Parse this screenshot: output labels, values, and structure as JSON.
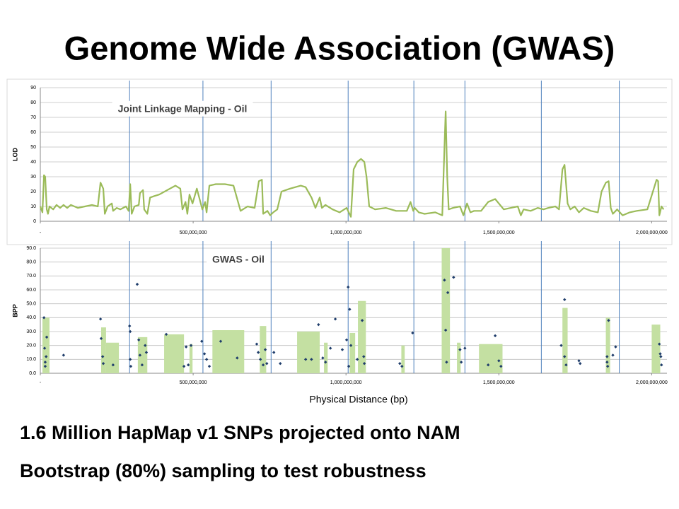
{
  "title": "Genome Wide Association (GWAS)",
  "chart_data": [
    {
      "type": "line",
      "annotation": "Joint Linkage Mapping - Oil",
      "ylabel": "LOD",
      "color": "#9bbb59",
      "grid": true,
      "xlim": [
        0,
        2050000000
      ],
      "ylim": [
        0,
        90
      ],
      "xticks": [
        {
          "value": 0,
          "label": "-"
        },
        {
          "value": 500000000,
          "label": "500,000,000"
        },
        {
          "value": 1000000000,
          "label": "1,000,000,000"
        },
        {
          "value": 1500000000,
          "label": "1,500,000,000"
        },
        {
          "value": 2000000000,
          "label": "2,000,000,000"
        }
      ],
      "yticks": [
        0,
        10,
        20,
        30,
        40,
        50,
        60,
        70,
        80,
        90
      ],
      "vlines": [
        292000000.0,
        532000000.0,
        755000000.0,
        1007000000.0,
        1222000000.0,
        1389000000.0,
        1639000000.0,
        1894000000.0
      ],
      "x": [
        0,
        7000000.0,
        12000000.0,
        16000000.0,
        21000000.0,
        25000000.0,
        30000000.0,
        42000000.0,
        53000000.0,
        65000000.0,
        76000000.0,
        88000000.0,
        100000000.0,
        123000000.0,
        146000000.0,
        169000000.0,
        188000000.0,
        197000000.0,
        206000000.0,
        211000000.0,
        220000000.0,
        234000000.0,
        238000000.0,
        250000000.0,
        262000000.0,
        280000000.0,
        289000000.0,
        294000000.0,
        299000000.0,
        308000000.0,
        322000000.0,
        326000000.0,
        336000000.0,
        340000000.0,
        350000000.0,
        359000000.0,
        373000000.0,
        389000000.0,
        424000000.0,
        442000000.0,
        458000000.0,
        465000000.0,
        475000000.0,
        481000000.0,
        488000000.0,
        498000000.0,
        512000000.0,
        521000000.0,
        530000000.0,
        539000000.0,
        544000000.0,
        553000000.0,
        574000000.0,
        604000000.0,
        632000000.0,
        655000000.0,
        678000000.0,
        701000000.0,
        715000000.0,
        725000000.0,
        729000000.0,
        743000000.0,
        752000000.0,
        762000000.0,
        775000000.0,
        789000000.0,
        817000000.0,
        852000000.0,
        868000000.0,
        887000000.0,
        900000000.0,
        914000000.0,
        921000000.0,
        933000000.0,
        956000000.0,
        979000000.0,
        1002000000.0,
        1016000000.0,
        1025000000.0,
        1037000000.0,
        1049000000.0,
        1060000000.0,
        1067000000.0,
        1076000000.0,
        1095000000.0,
        1130000000.0,
        1164000000.0,
        1199000000.0,
        1211000000.0,
        1220000000.0,
        1225000000.0,
        1238000000.0,
        1257000000.0,
        1292000000.0,
        1315000000.0,
        1322000000.0,
        1326000000.0,
        1331000000.0,
        1336000000.0,
        1350000000.0,
        1373000000.0,
        1384000000.0,
        1396000000.0,
        1407000000.0,
        1419000000.0,
        1442000000.0,
        1465000000.0,
        1488000000.0,
        1500000000.0,
        1516000000.0,
        1539000000.0,
        1562000000.0,
        1572000000.0,
        1581000000.0,
        1604000000.0,
        1627000000.0,
        1646000000.0,
        1662000000.0,
        1685000000.0,
        1697000000.0,
        1708000000.0,
        1715000000.0,
        1725000000.0,
        1734000000.0,
        1748000000.0,
        1762000000.0,
        1778000000.0,
        1801000000.0,
        1824000000.0,
        1836000000.0,
        1850000000.0,
        1859000000.0,
        1866000000.0,
        1873000000.0,
        1887000000.0,
        1905000000.0,
        1928000000.0,
        1951000000.0,
        1986000000.0,
        2016000000.0,
        2021000000.0,
        2025000000.0,
        2032000000.0,
        2039000000.0
      ],
      "values": [
        10,
        6,
        31,
        30,
        8,
        5,
        10,
        8,
        11,
        9,
        11,
        9,
        11,
        9,
        10,
        11,
        10,
        26,
        22,
        5,
        10,
        12,
        7,
        9,
        8,
        10,
        7,
        25,
        5,
        10,
        11,
        19,
        21,
        8,
        5,
        16,
        17,
        18,
        22,
        24,
        22,
        8,
        13,
        5,
        18,
        12,
        22,
        15,
        8,
        13,
        6,
        24,
        25,
        25,
        24,
        7,
        10,
        9,
        27,
        28,
        5,
        7,
        4,
        6,
        8,
        20,
        22,
        24,
        23,
        16,
        9,
        16,
        9,
        11,
        8,
        6,
        9,
        3,
        35,
        40,
        42,
        40,
        30,
        10,
        8,
        9,
        7,
        7,
        13,
        7,
        9,
        6,
        5,
        6,
        4,
        50,
        74,
        30,
        8,
        9,
        10,
        4,
        12,
        6,
        7,
        7,
        13,
        15,
        12,
        8,
        9,
        10,
        4,
        8,
        7,
        9,
        8,
        9,
        10,
        8,
        35,
        38,
        12,
        8,
        10,
        6,
        9,
        7,
        6,
        20,
        26,
        27,
        9,
        5,
        8,
        4,
        6,
        7,
        8,
        28,
        27,
        4,
        10,
        8
      ]
    },
    {
      "type": "scatter",
      "annotation": "GWAS - Oil",
      "ylabel": "BPP",
      "xlabel": "Physical Distance (bp)",
      "color": "#1f3d6b",
      "grid": true,
      "xlim": [
        0,
        2050000000
      ],
      "ylim": [
        0,
        90
      ],
      "xticks": [
        {
          "value": 0,
          "label": "-"
        },
        {
          "value": 500000000,
          "label": "500,000,000"
        },
        {
          "value": 1000000000,
          "label": "1,000,000,000"
        },
        {
          "value": 1500000000,
          "label": "1,500,000,000"
        },
        {
          "value": 2000000000,
          "label": "2,000,000,000"
        }
      ],
      "yticks": [
        {
          "value": 0,
          "label": "0.0"
        },
        {
          "value": 10,
          "label": "10.0"
        },
        {
          "value": 20,
          "label": "20.0"
        },
        {
          "value": 30,
          "label": "30.0"
        },
        {
          "value": 40,
          "label": "40.0"
        },
        {
          "value": 50,
          "label": "50.0"
        },
        {
          "value": 60,
          "label": "60.0"
        },
        {
          "value": 70,
          "label": "70.0"
        },
        {
          "value": 80,
          "label": "80.0"
        },
        {
          "value": 90,
          "label": "90.0"
        }
      ],
      "vlines": [
        292000000.0,
        532000000.0,
        755000000.0,
        1007000000.0,
        1222000000.0,
        1389000000.0,
        1639000000.0,
        1894000000.0
      ],
      "intervals": {
        "color": "#c4e0a2",
        "x_start": [
          7000000.0,
          199000000.0,
          215000000.0,
          319000000.0,
          405000000.0,
          488000000.0,
          563000000.0,
          718000000.0,
          840000000.0,
          928000000.0,
          1012000000.0,
          1039000000.0,
          1181000000.0,
          1313000000.0,
          1363000000.0,
          1435000000.0,
          1708000000.0,
          1850000000.0,
          2000000000.0
        ],
        "x_end": [
          30000000.0,
          215000000.0,
          257000000.0,
          350000000.0,
          470000000.0,
          498000000.0,
          667000000.0,
          739000000.0,
          914000000.0,
          940000000.0,
          1030000000.0,
          1065000000.0,
          1192000000.0,
          1340000000.0,
          1375000000.0,
          1512000000.0,
          1725000000.0,
          1864000000.0,
          2028000000.0
        ],
        "values": [
          40,
          33,
          22,
          26,
          28,
          21,
          31,
          34,
          30,
          22,
          29,
          52,
          20,
          90,
          22,
          21,
          47,
          40,
          35
        ]
      },
      "x": [
        12000000.0,
        14000000.0,
        16000000.0,
        19000000.0,
        21000000.0,
        16000000.0,
        76000000.0,
        197000000.0,
        199000000.0,
        204000000.0,
        206000000.0,
        238000000.0,
        292000000.0,
        294000000.0,
        294000000.0,
        296000000.0,
        317000000.0,
        322000000.0,
        326000000.0,
        333000000.0,
        343000000.0,
        347000000.0,
        412000000.0,
        470000000.0,
        477000000.0,
        484000000.0,
        493000000.0,
        528000000.0,
        537000000.0,
        544000000.0,
        553000000.0,
        590000000.0,
        644000000.0,
        708000000.0,
        713000000.0,
        720000000.0,
        729000000.0,
        736000000.0,
        741000000.0,
        764000000.0,
        785000000.0,
        868000000.0,
        887000000.0,
        910000000.0,
        924000000.0,
        933000000.0,
        949000000.0,
        965000000.0,
        988000000.0,
        1002000000.0,
        1007000000.0,
        1012000000.0,
        1016000000.0,
        1009000000.0,
        1037000000.0,
        1053000000.0,
        1058000000.0,
        1060000000.0,
        1176000000.0,
        1183000000.0,
        1218000000.0,
        1322000000.0,
        1326000000.0,
        1329000000.0,
        1333000000.0,
        1352000000.0,
        1373000000.0,
        1377000000.0,
        1389000000.0,
        1465000000.0,
        1488000000.0,
        1500000000.0,
        1507000000.0,
        1704000000.0,
        1715000000.0,
        1715000000.0,
        1720000000.0,
        1762000000.0,
        1766000000.0,
        1854000000.0,
        1854000000.0,
        1856000000.0,
        1859000000.0,
        1873000000.0,
        1882000000.0,
        2025000000.0,
        2028000000.0,
        2030000000.0,
        2032000000.0
      ],
      "values": [
        40,
        18,
        8,
        12,
        26,
        5,
        13,
        39,
        25,
        12,
        7,
        6,
        34,
        30,
        10,
        5,
        64,
        24,
        13,
        6,
        20,
        15,
        28,
        5,
        19,
        6,
        20,
        23,
        14,
        10,
        5,
        23,
        11,
        21,
        15,
        10,
        6,
        17,
        7,
        15,
        7,
        10,
        10,
        35,
        11,
        8,
        18,
        39,
        17,
        24,
        62,
        46,
        20,
        5,
        10,
        38,
        12,
        7,
        7,
        5,
        29,
        67,
        31,
        8,
        58,
        69,
        17,
        8,
        18,
        6,
        27,
        9,
        5,
        20,
        53,
        12,
        6,
        9,
        7,
        12,
        8,
        5,
        38,
        13,
        19,
        21,
        14,
        12,
        6
      ]
    }
  ],
  "bullets": [
    "1.6 Million HapMap v1 SNPs projected onto NAM",
    "Bootstrap (80%) sampling to test robustness"
  ]
}
